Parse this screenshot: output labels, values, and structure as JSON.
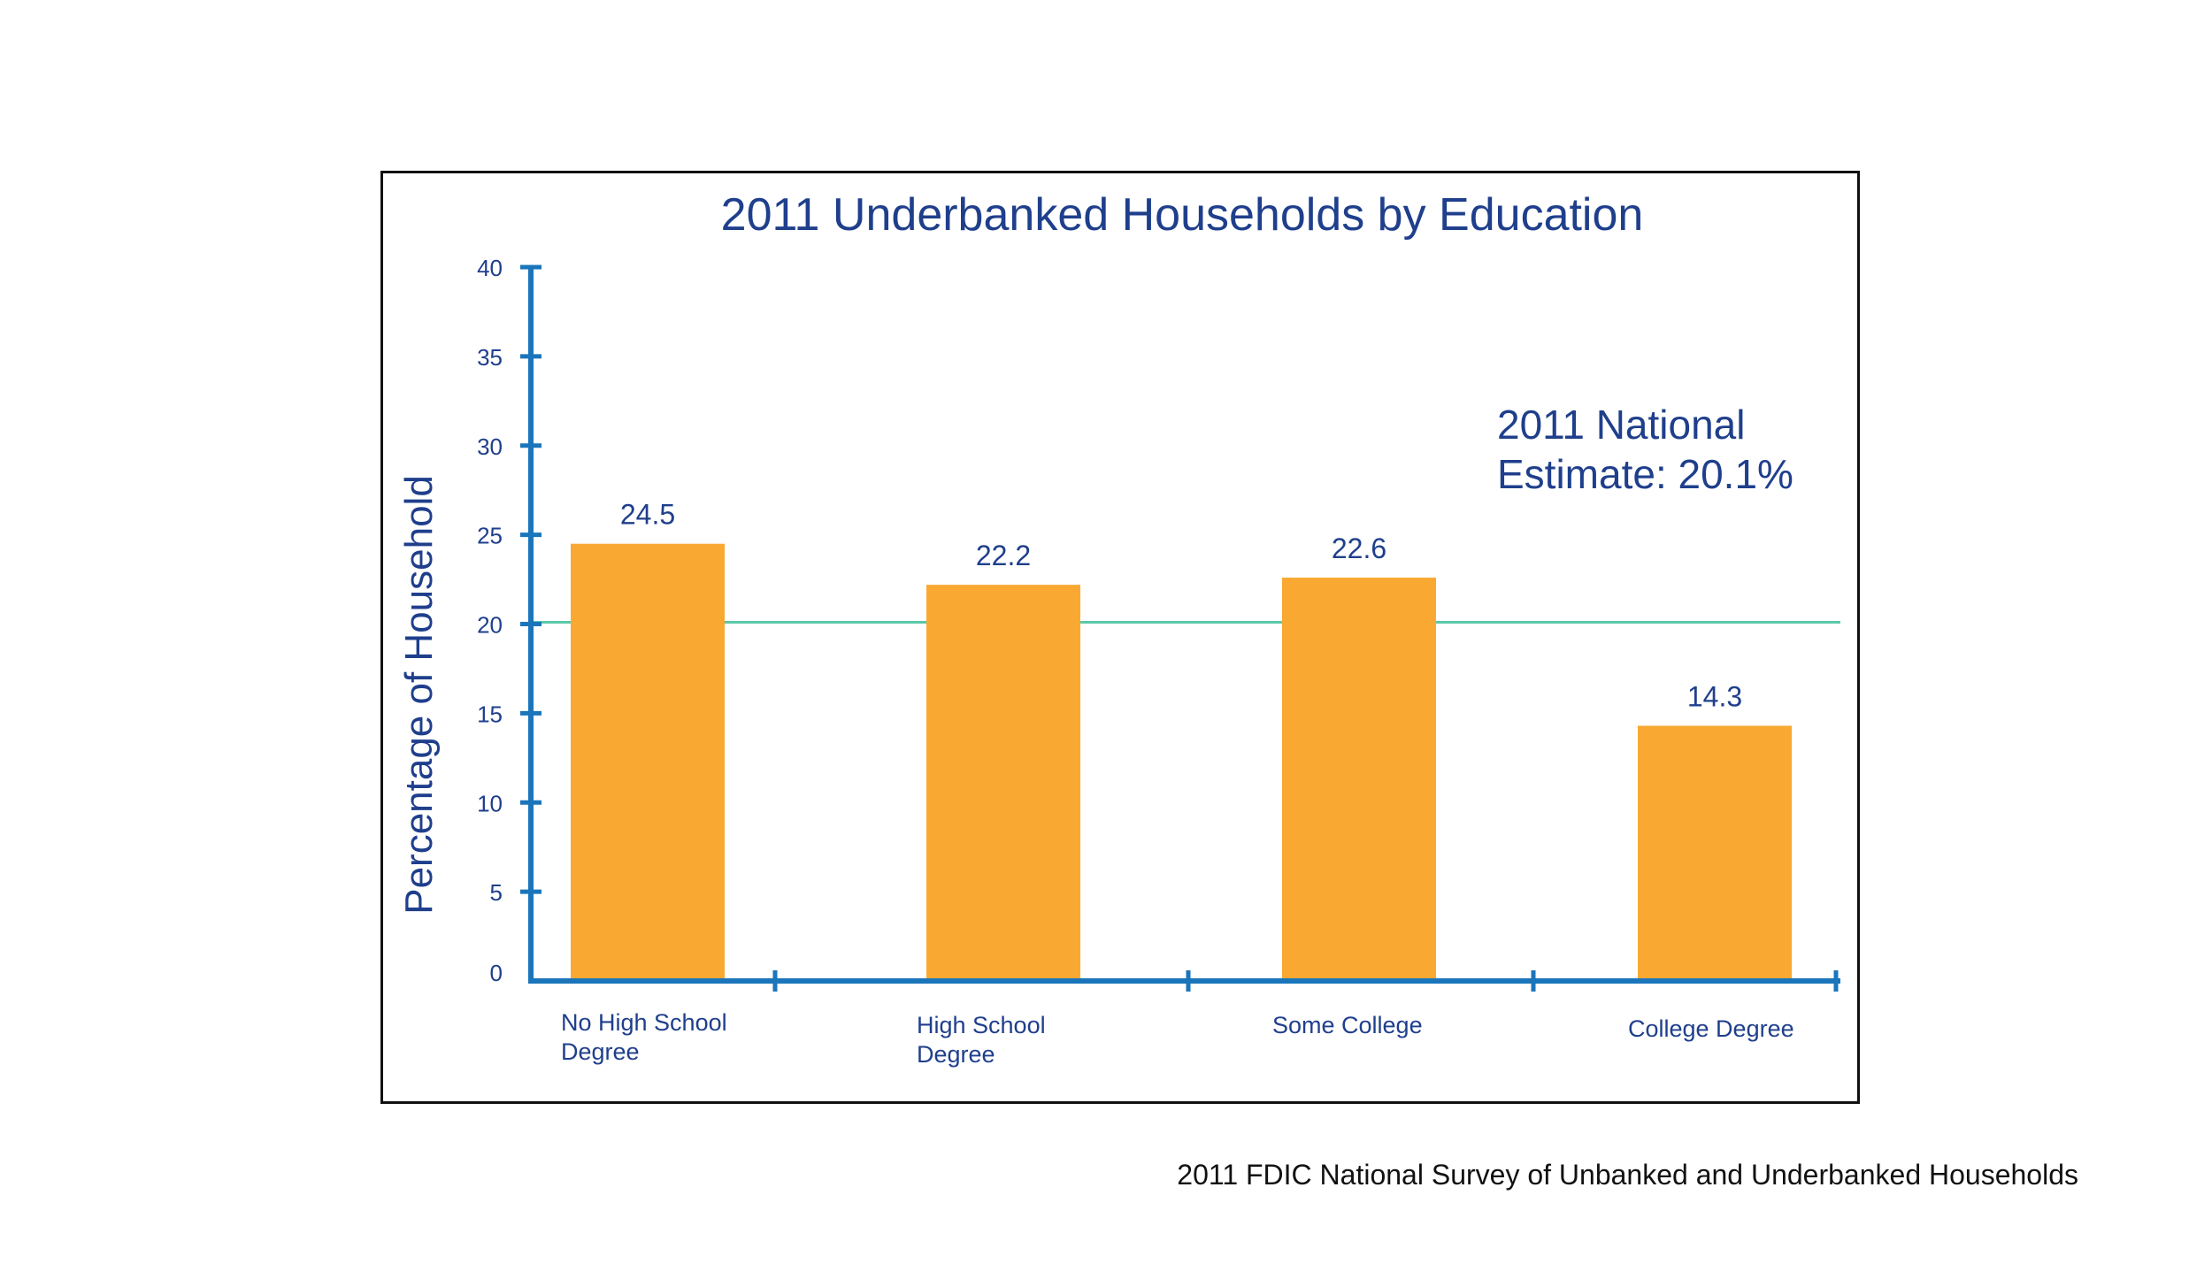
{
  "chart_data": {
    "type": "bar",
    "title": "2011 Underbanked Households by Education",
    "ylabel": "Percentage of Household",
    "xlabel": "",
    "categories": [
      [
        "No High School",
        "Degree"
      ],
      [
        "High School",
        "Degree"
      ],
      [
        "Some College"
      ],
      [
        "College Degree"
      ]
    ],
    "values": [
      24.5,
      22.2,
      22.6,
      14.3
    ],
    "value_labels": [
      "24.5",
      "22.2",
      "22.6",
      "14.3"
    ],
    "ylim": [
      0,
      40
    ],
    "yticks": [
      0,
      5,
      10,
      15,
      20,
      25,
      30,
      35,
      40
    ],
    "reference_line": {
      "value": 20.1,
      "label": [
        "2011 National",
        "Estimate: 20.1%"
      ]
    },
    "grid": false,
    "legend": "none",
    "colors": {
      "bar": "#F9A932",
      "axis": "#1B75BB",
      "text": "#1F3F8C",
      "reference_line": "#5CC8A8"
    }
  },
  "source": "2011 FDIC National Survey of Unbanked and Underbanked Households"
}
